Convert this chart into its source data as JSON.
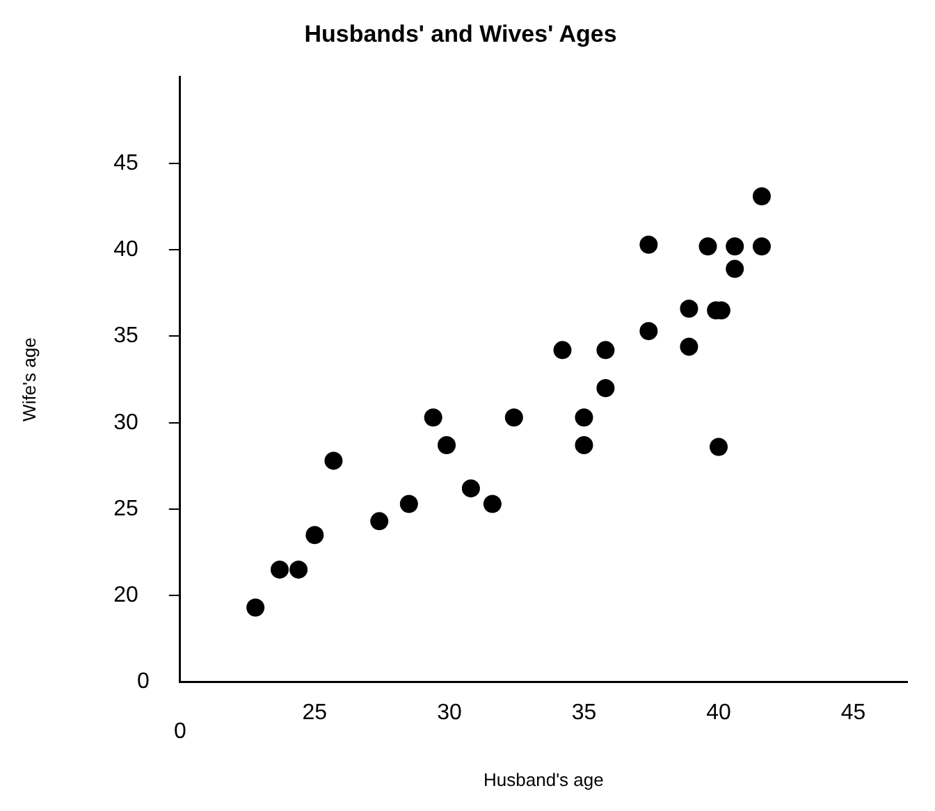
{
  "chart_data": {
    "type": "scatter",
    "title": "Husbands' and Wives' Ages",
    "xlabel": "Husband's age",
    "ylabel": "Wife's age",
    "x": [
      22.8,
      23.7,
      24.4,
      25.0,
      25.7,
      27.4,
      28.5,
      29.4,
      29.9,
      30.8,
      31.6,
      32.4,
      34.2,
      35.0,
      35.0,
      35.8,
      35.8,
      37.4,
      37.4,
      38.9,
      38.9,
      39.6,
      39.9,
      40.1,
      40.0,
      40.6,
      40.6,
      41.6,
      41.6
    ],
    "values": [
      19.3,
      21.5,
      21.5,
      23.5,
      27.8,
      24.3,
      25.3,
      30.3,
      28.7,
      26.2,
      25.3,
      30.3,
      34.2,
      30.3,
      28.7,
      34.2,
      32.0,
      40.3,
      35.3,
      36.6,
      34.4,
      40.2,
      36.5,
      36.5,
      28.6,
      40.2,
      38.9,
      43.1,
      40.2
    ],
    "color": "#000000",
    "marker": "circle",
    "xlim": [
      20,
      47
    ],
    "ylim": [
      15,
      50
    ],
    "xticks": [
      25,
      30,
      35,
      40,
      45
    ],
    "yticks": [
      20,
      25,
      30,
      35,
      40,
      45
    ],
    "annotations": [
      "0",
      "0"
    ],
    "grid": false,
    "legend": false
  }
}
